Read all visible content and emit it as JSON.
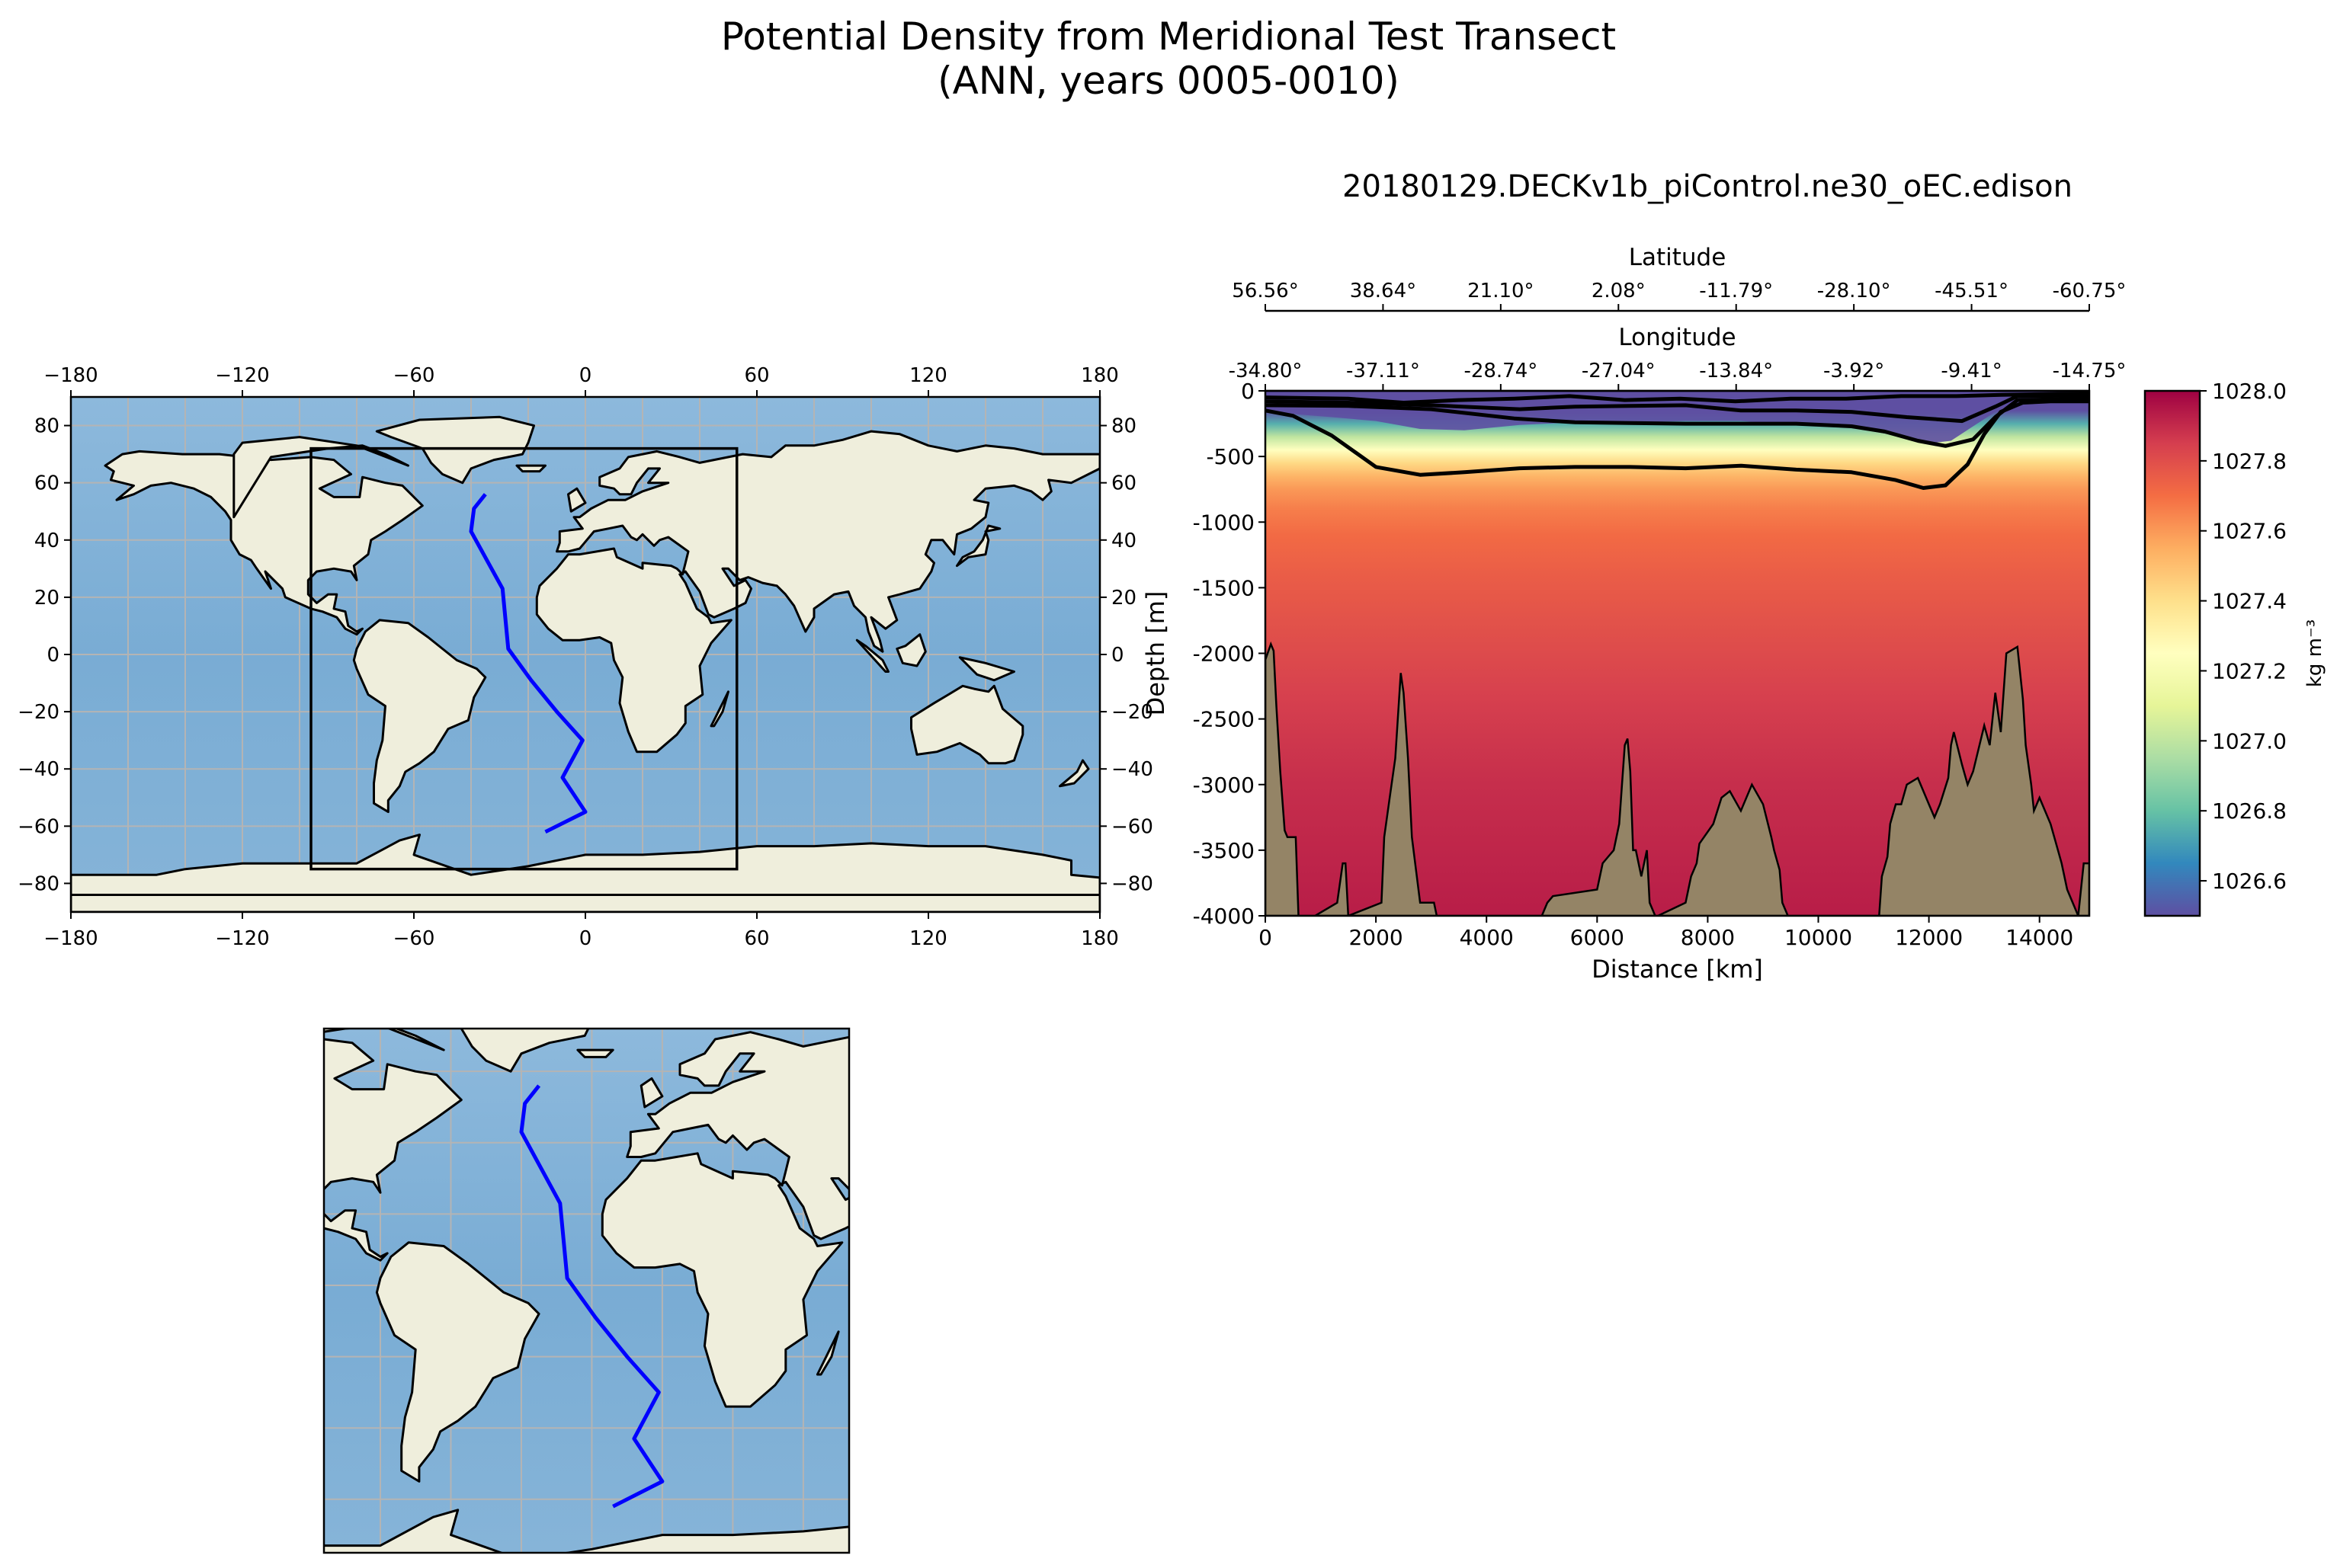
{
  "figure": {
    "title_line1": "Potential Density from Meridional Test Transect",
    "title_line2": "(ANN, years 0005-0010)"
  },
  "colors": {
    "ocean": "#7fb0d6",
    "land": "#efeedc",
    "transect": "#0000ff",
    "grid": "#b4b4b4",
    "bathymetry": "#948466"
  },
  "maps": [
    {
      "name": "global-map",
      "projection": "PlateCarree",
      "xlim": [
        -180,
        180
      ],
      "ylim": [
        -90,
        90
      ],
      "xticks": [
        -180,
        -120,
        -60,
        0,
        60,
        120,
        180
      ],
      "yticks": [
        -80,
        -60,
        -40,
        -20,
        0,
        20,
        40,
        60,
        80
      ],
      "xtick_labels": [
        "−180",
        "−120",
        "−60",
        "0",
        "60",
        "120",
        "180"
      ],
      "ytick_labels": [
        "−80",
        "−60",
        "−40",
        "−20",
        "0",
        "20",
        "40",
        "60",
        "80"
      ],
      "inset_box": {
        "lon": [
          -96,
          53
        ],
        "lat": [
          -75,
          72
        ]
      }
    },
    {
      "name": "inset-map",
      "projection": "PlateCarree",
      "xlim": [
        -96,
        53
      ],
      "ylim": [
        -75,
        72
      ]
    }
  ],
  "transect_path": {
    "lon": [
      -35,
      -39,
      -40,
      -29,
      -27,
      -19,
      -10,
      -1,
      -8,
      0,
      -14
    ],
    "lat": [
      56,
      51,
      43,
      23,
      2,
      -9,
      -20,
      -30,
      -43,
      -55,
      -62
    ]
  },
  "chart_data": {
    "type": "heatmap",
    "title": "20180129.DECKv1b_piControl.ne30_oEC.edison",
    "xlabel": "Distance [km]",
    "ylabel": "Depth [m]",
    "xlim": [
      0,
      14900
    ],
    "ylim": [
      -4000,
      0
    ],
    "xticks": [
      0,
      2000,
      4000,
      6000,
      8000,
      10000,
      12000,
      14000
    ],
    "yticks": [
      0,
      -500,
      -1000,
      -1500,
      -2000,
      -2500,
      -3000,
      -3500,
      -4000
    ],
    "top_axes": [
      {
        "label": "Latitude",
        "tick_labels": [
          "56.56°",
          "38.64°",
          "21.10°",
          "2.08°",
          "-11.79°",
          "-28.10°",
          "-45.51°",
          "-60.75°"
        ]
      },
      {
        "label": "Longitude",
        "tick_labels": [
          "-34.80°",
          "-37.11°",
          "-28.74°",
          "-27.04°",
          "-13.84°",
          "-3.92°",
          "-9.41°",
          "-14.75°"
        ]
      }
    ],
    "colorbar": {
      "label": "kg m⁻³",
      "vmin": 1026.5,
      "vmax": 1028.0,
      "ticks": [
        1026.6,
        1026.8,
        1027.0,
        1027.2,
        1027.4,
        1027.6,
        1027.8,
        1028.0
      ],
      "cmap": "Spectral_r"
    },
    "density_profile": {
      "depth": [
        0,
        80,
        150,
        250,
        350,
        450,
        550,
        650,
        750,
        900,
        1100,
        1400,
        1800,
        2300,
        3000,
        4000
      ],
      "density_mid": [
        1026.3,
        1026.4,
        1026.5,
        1026.75,
        1027.0,
        1027.25,
        1027.42,
        1027.53,
        1027.6,
        1027.66,
        1027.71,
        1027.75,
        1027.79,
        1027.84,
        1027.89,
        1027.93
      ]
    },
    "thermocline_depth": {
      "distance": [
        0,
        600,
        1200,
        2000,
        2800,
        3600,
        4600,
        5600,
        6600,
        7600,
        8600,
        9600,
        10600,
        11400,
        12000,
        12400,
        12800,
        13200,
        13600,
        14000,
        14900
      ],
      "depth": [
        150,
        180,
        200,
        230,
        290,
        300,
        260,
        240,
        240,
        230,
        230,
        260,
        280,
        340,
        400,
        380,
        270,
        160,
        110,
        110,
        110
      ]
    },
    "contours": [
      {
        "name": "contour-deep",
        "distance": [
          0,
          500,
          1200,
          2000,
          2800,
          3600,
          4600,
          5600,
          6600,
          7600,
          8600,
          9600,
          10600,
          11400,
          11900,
          12300,
          12700,
          13000,
          13300,
          13700,
          14200,
          14900
        ],
        "depth": [
          150,
          190,
          340,
          580,
          640,
          620,
          590,
          580,
          580,
          590,
          570,
          600,
          620,
          680,
          740,
          720,
          560,
          330,
          160,
          90,
          80,
          80
        ]
      },
      {
        "name": "contour-mid",
        "distance": [
          0,
          1500,
          3000,
          4500,
          5600,
          6600,
          7600,
          8600,
          9600,
          10600,
          11200,
          11800,
          12300,
          12800,
          13200,
          13600,
          14900
        ],
        "depth": [
          110,
          115,
          140,
          210,
          240,
          245,
          250,
          250,
          250,
          270,
          310,
          380,
          420,
          370,
          200,
          70,
          60
        ]
      },
      {
        "name": "contour-upper",
        "distance": [
          0,
          1500,
          3000,
          4600,
          5600,
          6600,
          7600,
          8600,
          9600,
          10600,
          11600,
          12600,
          13200,
          13600,
          14900
        ],
        "depth": [
          80,
          90,
          110,
          140,
          120,
          115,
          110,
          150,
          150,
          160,
          200,
          230,
          120,
          40,
          35
        ]
      },
      {
        "name": "contour-shallow",
        "distance": [
          0,
          1500,
          2500,
          3500,
          4500,
          5500,
          6500,
          7500,
          8500,
          9500,
          10500,
          11500,
          12500,
          13300,
          14900
        ],
        "depth": [
          50,
          60,
          90,
          70,
          60,
          40,
          70,
          60,
          80,
          60,
          60,
          40,
          40,
          30,
          20
        ]
      }
    ],
    "bathymetry": {
      "distance": [
        0,
        100,
        150,
        200,
        270,
        350,
        400,
        550,
        600,
        700,
        900,
        1300,
        1400,
        1450,
        1500,
        2100,
        2150,
        2250,
        2350,
        2450,
        2500,
        2580,
        2650,
        2800,
        3050,
        3100,
        3600,
        5000,
        5100,
        5200,
        6000,
        6100,
        6200,
        6300,
        6400,
        6500,
        6550,
        6600,
        6650,
        6700,
        6800,
        6900,
        6950,
        7050,
        7100,
        7600,
        7700,
        7800,
        7850,
        8100,
        8250,
        8400,
        8600,
        8800,
        9000,
        9150,
        9200,
        9300,
        9350,
        9450,
        10000,
        11100,
        11150,
        11250,
        11300,
        11400,
        11500,
        11600,
        11800,
        12000,
        12100,
        12200,
        12350,
        12400,
        12450,
        12600,
        12700,
        12800,
        13000,
        13100,
        13200,
        13300,
        13400,
        13600,
        13700,
        13750,
        13850,
        13900,
        14000,
        14200,
        14300,
        14400,
        14500,
        14700,
        14800,
        14900
      ],
      "depth": [
        2050,
        1930,
        1980,
        2400,
        2900,
        3350,
        3400,
        3400,
        4000,
        4000,
        4000,
        3900,
        3600,
        3600,
        4000,
        3900,
        3400,
        3100,
        2800,
        2150,
        2300,
        2800,
        3400,
        3900,
        3900,
        4000,
        4000,
        4000,
        3900,
        3850,
        3800,
        3600,
        3550,
        3500,
        3300,
        2700,
        2650,
        2900,
        3500,
        3500,
        3700,
        3500,
        3900,
        4000,
        4000,
        3900,
        3700,
        3600,
        3450,
        3300,
        3100,
        3050,
        3200,
        3000,
        3150,
        3400,
        3500,
        3650,
        3900,
        4000,
        4000,
        4000,
        3700,
        3550,
        3300,
        3150,
        3150,
        3000,
        2950,
        3150,
        3250,
        3150,
        2950,
        2700,
        2600,
        2850,
        3000,
        2900,
        2550,
        2700,
        2300,
        2600,
        2000,
        1950,
        2350,
        2700,
        3000,
        3200,
        3100,
        3300,
        3450,
        3600,
        3800,
        4000,
        3600,
        3600
      ]
    }
  }
}
